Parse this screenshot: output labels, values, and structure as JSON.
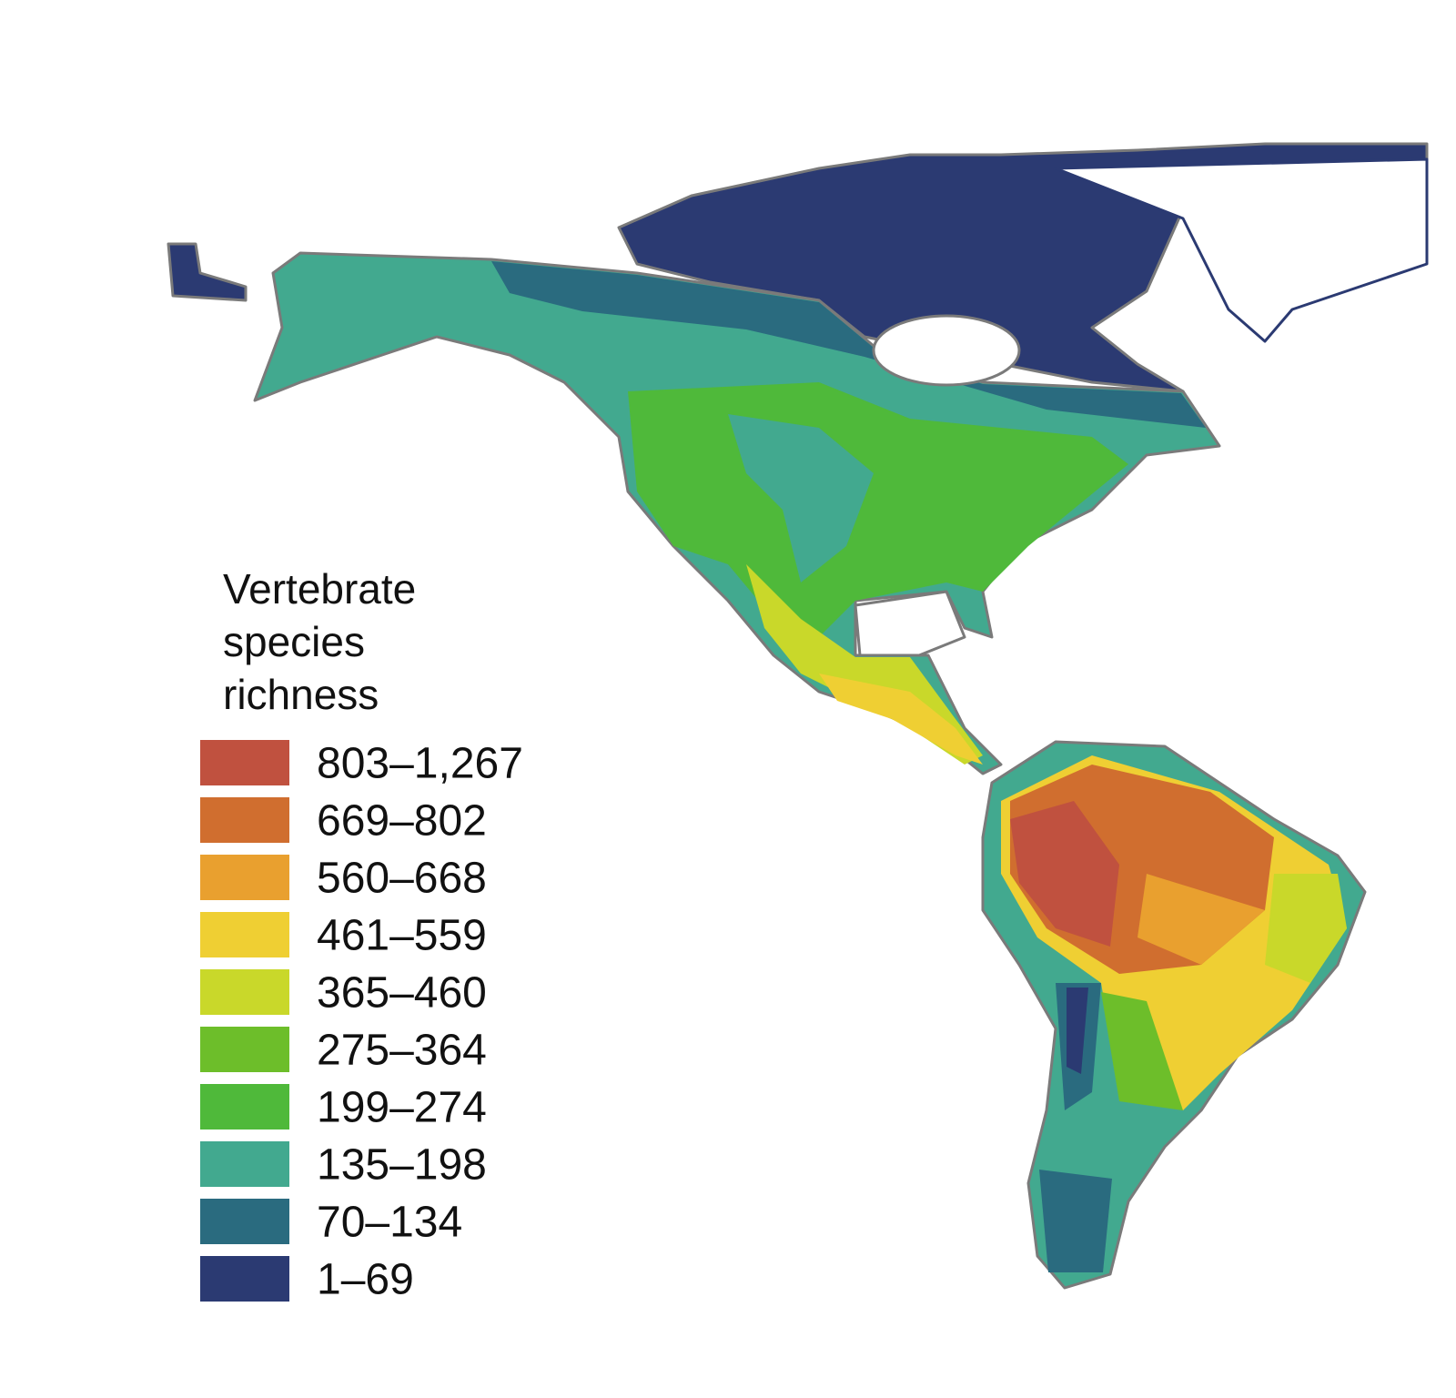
{
  "legend": {
    "title": "Vertebrate species richness",
    "items": [
      {
        "label": "803–1,267",
        "color": "#c0513f"
      },
      {
        "label": "669–802",
        "color": "#d06e2f"
      },
      {
        "label": "560–668",
        "color": "#e9a02f"
      },
      {
        "label": "461–559",
        "color": "#efcf33"
      },
      {
        "label": "365–460",
        "color": "#c9d82a"
      },
      {
        "label": "275–364",
        "color": "#6dbe2a"
      },
      {
        "label": "199–274",
        "color": "#4fb93a"
      },
      {
        "label": "135–198",
        "color": "#42a98f"
      },
      {
        "label": "70–134",
        "color": "#2a6b7f"
      },
      {
        "label": "1–69",
        "color": "#2b3a72"
      }
    ]
  }
}
